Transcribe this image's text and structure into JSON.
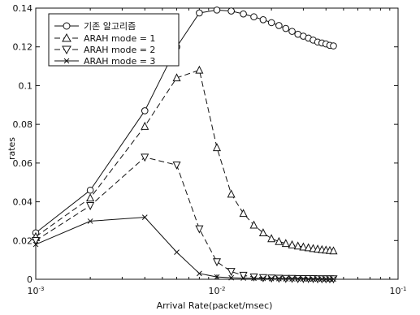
{
  "chart_data": {
    "type": "line",
    "title": "",
    "xlabel": "Arrival Rate(packet/msec)",
    "ylabel": "rates",
    "xscale": "log",
    "xlim": [
      0.001,
      0.1
    ],
    "ylim": [
      0,
      0.14
    ],
    "grid": false,
    "legend_position": "top-left",
    "x_tick_labels": [
      {
        "value": 0.001,
        "base": "10",
        "exp": "-3"
      },
      {
        "value": 0.01,
        "base": "10",
        "exp": "-2"
      },
      {
        "value": 0.1,
        "base": "10",
        "exp": "-1"
      }
    ],
    "y_ticks": [
      0,
      0.02,
      0.04,
      0.06,
      0.08,
      0.1,
      0.12,
      0.14
    ],
    "y_tick_labels": [
      "0",
      "0.02",
      "0.04",
      "0.06",
      "0.08",
      "0.1",
      "0.12",
      "0.14"
    ],
    "series": [
      {
        "name": "기존 알고리즘",
        "marker": "circle",
        "line_style": "solid",
        "x": [
          0.001,
          0.002,
          0.004,
          0.006,
          0.008,
          0.01,
          0.012,
          0.014,
          0.016,
          0.018,
          0.02,
          0.022,
          0.024,
          0.026,
          0.028,
          0.03,
          0.032,
          0.034,
          0.036,
          0.038,
          0.04,
          0.042,
          0.044
        ],
        "y": [
          0.024,
          0.046,
          0.087,
          0.12,
          0.1375,
          0.139,
          0.1385,
          0.137,
          0.1355,
          0.134,
          0.1325,
          0.131,
          0.1295,
          0.128,
          0.1265,
          0.1255,
          0.1245,
          0.1235,
          0.1225,
          0.122,
          0.1215,
          0.1208,
          0.1205
        ]
      },
      {
        "name": "ARAH mode = 1",
        "marker": "triangle-up",
        "line_style": "dashed",
        "x": [
          0.001,
          0.002,
          0.004,
          0.006,
          0.008,
          0.01,
          0.012,
          0.014,
          0.016,
          0.018,
          0.02,
          0.022,
          0.024,
          0.026,
          0.028,
          0.03,
          0.032,
          0.034,
          0.036,
          0.038,
          0.04,
          0.042,
          0.044
        ],
        "y": [
          0.022,
          0.042,
          0.079,
          0.104,
          0.108,
          0.068,
          0.044,
          0.034,
          0.028,
          0.024,
          0.021,
          0.0195,
          0.0185,
          0.0178,
          0.0172,
          0.0167,
          0.0163,
          0.0159,
          0.0156,
          0.0153,
          0.0151,
          0.0149,
          0.0147
        ]
      },
      {
        "name": "ARAH mode = 2",
        "marker": "triangle-down",
        "line_style": "dashed",
        "x": [
          0.001,
          0.002,
          0.004,
          0.006,
          0.008,
          0.01,
          0.012,
          0.014,
          0.016,
          0.018,
          0.02,
          0.022,
          0.024,
          0.026,
          0.028,
          0.03,
          0.032,
          0.034,
          0.036,
          0.038,
          0.04,
          0.042,
          0.044
        ],
        "y": [
          0.02,
          0.038,
          0.063,
          0.059,
          0.026,
          0.009,
          0.004,
          0.002,
          0.0012,
          0.0008,
          0.0006,
          0.0005,
          0.0004,
          0.0004,
          0.0003,
          0.0003,
          0.0003,
          0.0003,
          0.0002,
          0.0002,
          0.0002,
          0.0002,
          0.0002
        ]
      },
      {
        "name": "ARAH mode = 3",
        "marker": "x",
        "line_style": "solid",
        "x": [
          0.001,
          0.002,
          0.004,
          0.006,
          0.008,
          0.01,
          0.012,
          0.014,
          0.016,
          0.018,
          0.02,
          0.022,
          0.024,
          0.026,
          0.028,
          0.03,
          0.032,
          0.034,
          0.036,
          0.038,
          0.04,
          0.042,
          0.044
        ],
        "y": [
          0.018,
          0.03,
          0.032,
          0.014,
          0.003,
          0.0012,
          0.0008,
          0.0006,
          0.0005,
          0.0004,
          0.0003,
          0.0003,
          0.0002,
          0.0002,
          0.0002,
          0.0002,
          0.0001,
          0.0001,
          0.0001,
          0.0001,
          0.0001,
          0.0001,
          0.0001
        ]
      }
    ]
  }
}
